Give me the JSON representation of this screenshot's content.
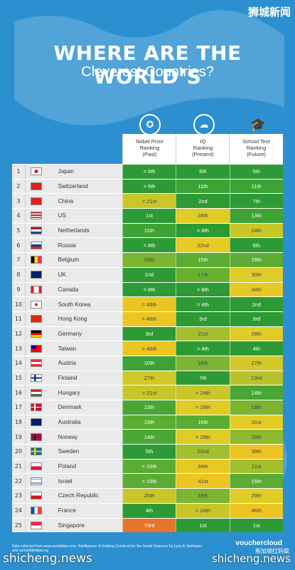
{
  "watermark_top": "狮城新闻",
  "title_line1": "WHERE ARE THE WORLD’S",
  "title_line2": "Cleverest Countries?",
  "columns": [
    {
      "icon": "medal-icon",
      "label": "Nobel Prize\nRanking\n(Past)"
    },
    {
      "icon": "brain-icon",
      "label": "IQ\nRanking\n(Present)"
    },
    {
      "icon": "graduation-cap-icon",
      "label": "School Test\nRanking\n(Future)"
    }
  ],
  "rows": [
    {
      "rank": "1",
      "country": "Japan",
      "nobel": "= 6th",
      "iq": "6th",
      "school": "5th",
      "colors": [
        "#2e9a35",
        "#2e9a35",
        "#2e9a35"
      ],
      "flag": "japan"
    },
    {
      "rank": "2",
      "country": "Switzerland",
      "nobel": "= 6th",
      "iq": "11th",
      "school": "11th",
      "colors": [
        "#2e9a35",
        "#3ea335",
        "#3ea335"
      ],
      "flag": "switzerland"
    },
    {
      "rank": "3",
      "country": "China",
      "nobel": "= 21st",
      "iq": "2nd",
      "school": "7th",
      "colors": [
        "#c8c629",
        "#2e9a35",
        "#2e9a35"
      ],
      "flag": "china"
    },
    {
      "rank": "4",
      "country": "US",
      "nobel": "1st",
      "iq": "28th",
      "school": "13th",
      "colors": [
        "#2e9a35",
        "#e0cc26",
        "#3ea335"
      ],
      "flag": "us"
    },
    {
      "rank": "5",
      "country": "Netherlands",
      "nobel": "11th",
      "iq": "= 8th",
      "school": "24th",
      "colors": [
        "#3ea335",
        "#2e9a35",
        "#c8c629"
      ],
      "flag": "netherlands"
    },
    {
      "rank": "6",
      "country": "Russia",
      "nobel": "= 8th",
      "iq": "32nd",
      "school": "6th",
      "colors": [
        "#2e9a35",
        "#e4cb25",
        "#2e9a35"
      ],
      "flag": "russia"
    },
    {
      "rank": "7",
      "country": "Belgium",
      "nobel": "18th",
      "iq": "15th",
      "school": "16th",
      "colors": [
        "#7bb531",
        "#5aac33",
        "#5aac33"
      ],
      "flag": "belgium"
    },
    {
      "rank": "8",
      "country": "UK",
      "nobel": "2nd",
      "iq": "17th",
      "school": "30th",
      "colors": [
        "#2e9a35",
        "#6ab132",
        "#e0cc26"
      ],
      "flag": "uk"
    },
    {
      "rank": "9",
      "country": "Canada",
      "nobel": "= 8th",
      "iq": "= 8th",
      "school": "34th",
      "colors": [
        "#2e9a35",
        "#2e9a35",
        "#e8c924"
      ],
      "flag": "canada"
    },
    {
      "rank": "10",
      "country": "South Korea",
      "nobel": "= 46th",
      "iq": "= 4th",
      "school": "2nd",
      "colors": [
        "#ecc522",
        "#2e9a35",
        "#2e9a35"
      ],
      "flag": "south-korea"
    },
    {
      "rank": "11",
      "country": "Hong Kong",
      "nobel": "= 46th",
      "iq": "3rd",
      "school": "3rd",
      "colors": [
        "#ecc522",
        "#2e9a35",
        "#2e9a35"
      ],
      "flag": "hong-kong"
    },
    {
      "rank": "12",
      "country": "Germany",
      "nobel": "3rd",
      "iq": "21st",
      "school": "28th",
      "colors": [
        "#2e9a35",
        "#a3bf2d",
        "#e0cc26"
      ],
      "flag": "germany"
    },
    {
      "rank": "13",
      "country": "Taiwan",
      "nobel": "= 46th",
      "iq": "= 4th",
      "school": "4th",
      "colors": [
        "#ecc522",
        "#2e9a35",
        "#2e9a35"
      ],
      "flag": "taiwan"
    },
    {
      "rank": "14",
      "country": "Austria",
      "nobel": "10th",
      "iq": "18th",
      "school": "27th",
      "colors": [
        "#3ea335",
        "#7bb531",
        "#d2c828"
      ],
      "flag": "austria"
    },
    {
      "rank": "15",
      "country": "Finland",
      "nobel": "27th",
      "iq": "7th",
      "school": "23rd",
      "colors": [
        "#d2c828",
        "#2e9a35",
        "#b8c32b"
      ],
      "flag": "finland"
    },
    {
      "rank": "16",
      "country": "Hungary",
      "nobel": "= 21st",
      "iq": "= 24th",
      "school": "14th",
      "colors": [
        "#c8c629",
        "#c8c629",
        "#4aa734"
      ],
      "flag": "hungary"
    },
    {
      "rank": "17",
      "country": "Denmark",
      "nobel": "13th",
      "iq": "= 29th",
      "school": "18th",
      "colors": [
        "#4aa734",
        "#e0cc26",
        "#7bb531"
      ],
      "flag": "denmark"
    },
    {
      "rank": "18",
      "country": "Australia",
      "nobel": "15th",
      "iq": "16th",
      "school": "31st",
      "colors": [
        "#5aac33",
        "#5aac33",
        "#e4cb25"
      ],
      "flag": "australia"
    },
    {
      "rank": "19",
      "country": "Norway",
      "nobel": "14th",
      "iq": "= 29th",
      "school": "20th",
      "colors": [
        "#4aa734",
        "#e0cc26",
        "#8fba2f"
      ],
      "flag": "norway"
    },
    {
      "rank": "20",
      "country": "Sweden",
      "nobel": "5th",
      "iq": "22nd",
      "school": "39th",
      "colors": [
        "#2e9a35",
        "#a3bf2d",
        "#ecc522"
      ],
      "flag": "sweden"
    },
    {
      "rank": "21",
      "country": "Poland",
      "nobel": "= 15th",
      "iq": "34th",
      "school": "21st",
      "colors": [
        "#5aac33",
        "#e8c924",
        "#a3bf2d"
      ],
      "flag": "poland"
    },
    {
      "rank": "22",
      "country": "Israel",
      "nobel": "= 15th",
      "iq": "41st",
      "school": "15th",
      "colors": [
        "#5aac33",
        "#ecc522",
        "#5aac33"
      ],
      "flag": "israel"
    },
    {
      "rank": "23",
      "country": "Czech Republic",
      "nobel": "25th",
      "iq": "19th",
      "school": "29th",
      "colors": [
        "#c8c629",
        "#7bb531",
        "#e0cc26"
      ],
      "flag": "czech-republic"
    },
    {
      "rank": "24",
      "country": "France",
      "nobel": "4th",
      "iq": "= 24th",
      "school": "46th",
      "colors": [
        "#2e9a35",
        "#c8c629",
        "#ecc522"
      ],
      "flag": "france"
    },
    {
      "rank": "25",
      "country": "Singapore",
      "nobel": "73rd",
      "iq": "1st",
      "school": "1st",
      "colors": [
        "#e8742a",
        "#2e9a35",
        "#2e9a35"
      ],
      "flag": "singapore"
    }
  ],
  "footer_text": "Data collected from www.worldatlas.com, 'Intelligence: A Unifying Construct for the Social Sciences' by Lynn & Vanhanen and ourworldindata.org",
  "logo_text": "vouchercloud",
  "watermark_bottom_left": "shicheng.news",
  "watermark_bottom_right": "shicheng.news",
  "watermark_cn": "新加坡红蚂蚁"
}
